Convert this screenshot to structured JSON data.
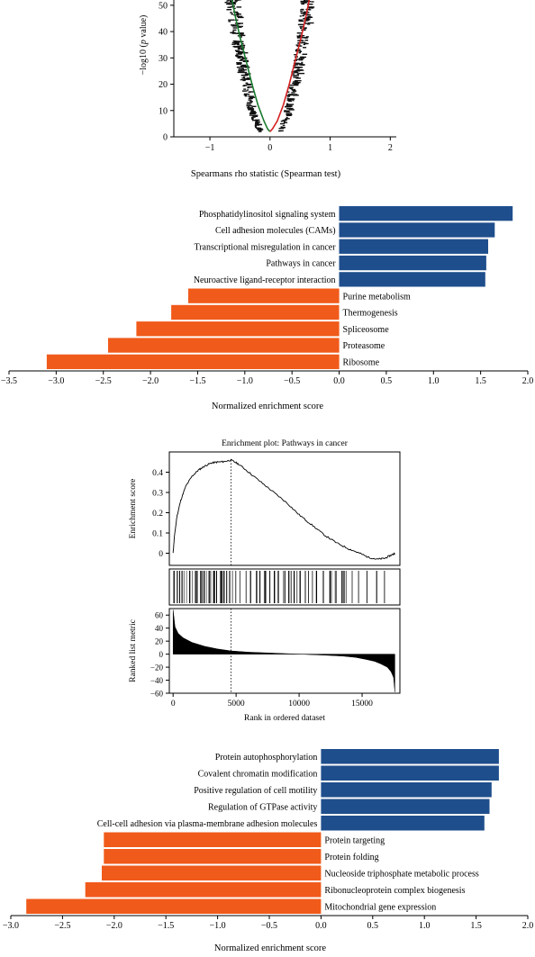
{
  "colors": {
    "positive": "#1f4e8c",
    "negative": "#f05a1a",
    "green_curve": "#1a7a2e",
    "red_curve": "#d42020"
  },
  "chart_data": [
    {
      "type": "scatter",
      "id": "volcano",
      "xlabel": "Spearmans rho statistic (Spearman test)",
      "ylabel_prefix": "−log10 (",
      "ylabel_italic": "p",
      "ylabel_suffix": " value)",
      "xlim": [
        -1.6,
        2.1
      ],
      "ylim": [
        0,
        52
      ],
      "xticks": [
        -1,
        0,
        1,
        2
      ],
      "xtick_labels": [
        "−1",
        "0",
        "1",
        "2"
      ],
      "yticks": [
        0,
        10,
        20,
        30,
        40,
        50
      ],
      "ytick_labels": [
        "0",
        "10",
        "20",
        "30",
        "40",
        "50"
      ],
      "fit_negative": {
        "color": "green",
        "x": [
          -0.04,
          -0.1,
          -0.2,
          -0.3,
          -0.4,
          -0.5,
          -0.58,
          -0.64
        ],
        "y": [
          3,
          6,
          12,
          20,
          29,
          38,
          46,
          53
        ]
      },
      "fit_positive": {
        "color": "red",
        "x": [
          0.04,
          0.12,
          0.22,
          0.32,
          0.42,
          0.52,
          0.6,
          0.66
        ],
        "y": [
          3,
          6,
          12,
          20,
          29,
          38,
          46,
          53
        ]
      }
    },
    {
      "type": "bar",
      "id": "kegg-gsea",
      "orientation": "horizontal",
      "xlabel": "Normalized enrichment score",
      "xlim": [
        -3.5,
        2.0
      ],
      "xticks": [
        -3.5,
        -3.0,
        -2.5,
        -2.0,
        -1.5,
        -1.0,
        -0.5,
        0.0,
        0.5,
        1.0,
        1.5,
        2.0
      ],
      "xtick_labels": [
        "−3.5",
        "−3.0",
        "−2.5",
        "−2.0",
        "−1.5",
        "−1.0",
        "−0.5",
        "0.0",
        "0.5",
        "1.0",
        "1.5",
        "2.0"
      ],
      "categories": [
        "Phosphatidylinositol signaling system",
        "Cell adhesion molecules (CAMs)",
        "Transcriptional misregulation in cancer",
        "Pathways in cancer",
        "Neuroactive ligand-receptor interaction",
        "Purine metabolism",
        "Thermogenesis",
        "Spliceosome",
        "Proteasome",
        "Ribosome"
      ],
      "values": [
        1.84,
        1.65,
        1.58,
        1.56,
        1.55,
        -1.6,
        -1.78,
        -2.15,
        -2.45,
        -3.1
      ]
    },
    {
      "type": "line",
      "id": "enrichment-plot",
      "title": "Enrichment plot: Pathways in cancer",
      "ylabel_top": "Enrichment score",
      "ylabel_bottom": "Ranked list metric",
      "xlabel": "Rank in ordered dataset",
      "xlim": [
        -300,
        18000
      ],
      "ylim_top": [
        -0.06,
        0.5
      ],
      "ylim_bottom": [
        -60,
        70
      ],
      "xticks": [
        0,
        5000,
        10000,
        15000
      ],
      "xtick_labels": [
        "0",
        "5000",
        "10000",
        "15000"
      ],
      "yticks_top": [
        0,
        0.1,
        0.2,
        0.3,
        0.4
      ],
      "ytick_labels_top": [
        "0",
        "0.1",
        "0.2",
        "0.3",
        "0.4"
      ],
      "yticks_bottom": [
        60,
        40,
        20,
        0,
        -20,
        -40,
        -60
      ],
      "ytick_labels_bottom": [
        "60",
        "40",
        "20",
        "0",
        "−20",
        "−40",
        "−60"
      ],
      "peak_rank": 4600,
      "running_es": {
        "x": [
          0,
          100,
          300,
          600,
          1000,
          1500,
          2000,
          2500,
          3000,
          3500,
          4000,
          4600,
          5200,
          6000,
          7000,
          8000,
          9000,
          10000,
          11000,
          12000,
          13000,
          14000,
          14800,
          15500,
          16200,
          16800,
          17300,
          17600
        ],
        "y": [
          0,
          0.08,
          0.18,
          0.26,
          0.33,
          0.38,
          0.41,
          0.43,
          0.445,
          0.45,
          0.452,
          0.46,
          0.44,
          0.4,
          0.35,
          0.3,
          0.25,
          0.19,
          0.14,
          0.09,
          0.05,
          0.02,
          0.0,
          -0.02,
          -0.03,
          -0.025,
          -0.01,
          0.0
        ]
      },
      "ranked_metric": {
        "x": [
          0,
          150,
          400,
          800,
          1500,
          2500,
          3500,
          4600,
          6000,
          8000,
          10000,
          12000,
          13500,
          14500,
          15300,
          16000,
          16500,
          17000,
          17300,
          17500,
          17600
        ],
        "y": [
          68,
          42,
          32,
          25,
          18,
          12,
          8,
          5,
          3,
          1.5,
          0,
          -1.5,
          -3,
          -5,
          -8,
          -11,
          -15,
          -20,
          -27,
          -36,
          -58
        ]
      }
    },
    {
      "type": "bar",
      "id": "go-gsea",
      "orientation": "horizontal",
      "xlabel": "Normalized enrichment score",
      "xlim": [
        -3.0,
        2.0
      ],
      "xticks": [
        -3.0,
        -2.5,
        -2.0,
        -1.5,
        -1.0,
        -0.5,
        0.0,
        0.5,
        1.0,
        1.5,
        2.0
      ],
      "xtick_labels": [
        "−3.0",
        "−2.5",
        "−2.0",
        "−1.5",
        "−1.0",
        "−0.5",
        "0.0",
        "0.5",
        "1.0",
        "1.5",
        "2.0"
      ],
      "categories": [
        "Protein autophosphorylation",
        "Covalent chromatin modification",
        "Positive regulation of cell motility",
        "Regulation of GTPase activity",
        "Cell-cell adhesion via plasma-membrane adhesion molecules",
        "Protein targeting",
        "Protein folding",
        "Nucleoside triphosphate metabolic process",
        "Ribonucleoprotein complex biogenesis",
        "Mitochondrial gene expression"
      ],
      "values": [
        1.72,
        1.72,
        1.65,
        1.63,
        1.58,
        -2.1,
        -2.1,
        -2.12,
        -2.28,
        -2.85
      ]
    }
  ]
}
